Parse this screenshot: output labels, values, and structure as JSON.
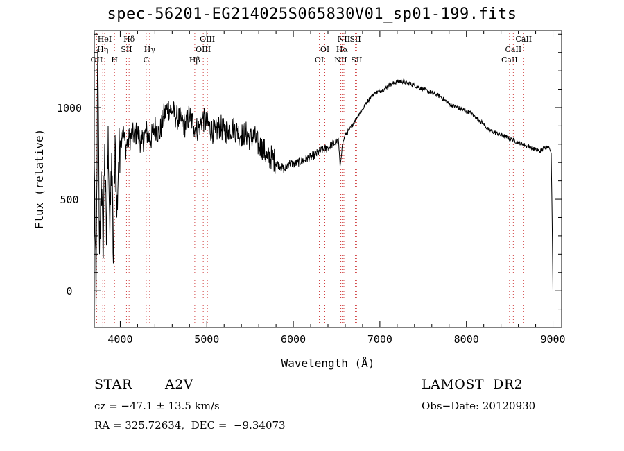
{
  "chart_data": {
    "type": "line",
    "title": "spec-56201-EG214025S065830V01_sp01-199.fits",
    "xlabel": "Wavelength (Å)",
    "ylabel": "Flux (relative)",
    "xlim": [
      3700,
      9100
    ],
    "ylim": [
      -200,
      1420
    ],
    "x_ticks": [
      4000,
      5000,
      6000,
      7000,
      8000,
      9000
    ],
    "y_ticks": [
      0,
      500,
      1000
    ],
    "x_tick_labels": [
      "4000",
      "5000",
      "6000",
      "7000",
      "8000",
      "9000"
    ],
    "y_tick_labels": [
      "0",
      "500",
      "1000"
    ],
    "grid": false,
    "series": [
      {
        "x": [
          3700,
          3720,
          3740,
          3760,
          3780,
          3800,
          3820,
          3840,
          3860,
          3880,
          3900,
          3920,
          3940,
          3960,
          3980,
          4000,
          4030,
          4060,
          4100,
          4150,
          4200,
          4250,
          4300,
          4350,
          4400,
          4450,
          4500,
          4550,
          4600,
          4650,
          4700,
          4750,
          4800,
          4850,
          4900,
          4950,
          5000,
          5050,
          5100,
          5150,
          5200,
          5250,
          5300,
          5350,
          5400,
          5450,
          5500,
          5550,
          5600,
          5650,
          5700,
          5750,
          5800,
          5850,
          5900,
          5950,
          6000,
          6050,
          6100,
          6150,
          6200,
          6250,
          6300,
          6350,
          6400,
          6450,
          6500,
          6520,
          6540,
          6563,
          6580,
          6600,
          6650,
          6700,
          6750,
          6800,
          6850,
          6900,
          6950,
          7000,
          7050,
          7100,
          7150,
          7200,
          7250,
          7300,
          7350,
          7400,
          7450,
          7500,
          7550,
          7600,
          7650,
          7700,
          7750,
          7800,
          7850,
          7900,
          7950,
          8000,
          8050,
          8100,
          8150,
          8200,
          8250,
          8300,
          8350,
          8400,
          8450,
          8500,
          8550,
          8600,
          8650,
          8700,
          8750,
          8800,
          8850,
          8900,
          8950,
          8980,
          8990,
          9000
        ],
        "y": [
          700,
          -100,
          1320,
          200,
          650,
          180,
          800,
          250,
          900,
          300,
          750,
          150,
          850,
          400,
          700,
          820,
          880,
          780,
          830,
          850,
          860,
          800,
          870,
          820,
          900,
          850,
          950,
          1000,
          980,
          950,
          930,
          900,
          960,
          900,
          880,
          940,
          910,
          880,
          860,
          900,
          870,
          880,
          890,
          870,
          850,
          860,
          830,
          840,
          790,
          780,
          720,
          730,
          700,
          680,
          660,
          700,
          690,
          700,
          710,
          720,
          730,
          740,
          760,
          770,
          780,
          800,
          810,
          830,
          680,
          780,
          820,
          850,
          880,
          920,
          960,
          990,
          1030,
          1060,
          1080,
          1090,
          1100,
          1120,
          1130,
          1140,
          1145,
          1135,
          1130,
          1120,
          1110,
          1100,
          1090,
          1080,
          1070,
          1060,
          1040,
          1020,
          1010,
          1000,
          990,
          980,
          970,
          950,
          930,
          910,
          880,
          870,
          860,
          850,
          840,
          830,
          820,
          810,
          800,
          790,
          780,
          770,
          760,
          780,
          790,
          750,
          400,
          0
        ]
      }
    ],
    "line_labels": [
      {
        "x": 3727,
        "label": "OII"
      },
      {
        "x": 3798,
        "label": "Hη"
      },
      {
        "x": 3820,
        "label": "HeI"
      },
      {
        "x": 3934,
        "label": "H"
      },
      {
        "x": 4072,
        "label": "SII"
      },
      {
        "x": 4102,
        "label": "Hδ"
      },
      {
        "x": 4300,
        "label": "G"
      },
      {
        "x": 4340,
        "label": "Hγ"
      },
      {
        "x": 4861,
        "label": "Hβ"
      },
      {
        "x": 4959,
        "label": "OIII"
      },
      {
        "x": 5007,
        "label": "OIII"
      },
      {
        "x": 6300,
        "label": "OI"
      },
      {
        "x": 6364,
        "label": "OI"
      },
      {
        "x": 6548,
        "label": "NII"
      },
      {
        "x": 6563,
        "label": "Hα"
      },
      {
        "x": 6584,
        "label": "NII"
      },
      {
        "x": 6717,
        "label": "SII"
      },
      {
        "x": 6731,
        "label": "SII"
      },
      {
        "x": 8498,
        "label": "CaII"
      },
      {
        "x": 8542,
        "label": "CaII"
      },
      {
        "x": 8662,
        "label": "CaII"
      }
    ]
  },
  "info": {
    "object_class": "STAR",
    "subclass": "A2V",
    "cz": "cz = −47.1 ± 13.5 km/s",
    "coords": "RA = 325.72634,  DEC =  −9.34073",
    "survey": "LAMOST  DR2",
    "obs_date": "Obs−Date: 20120930"
  }
}
